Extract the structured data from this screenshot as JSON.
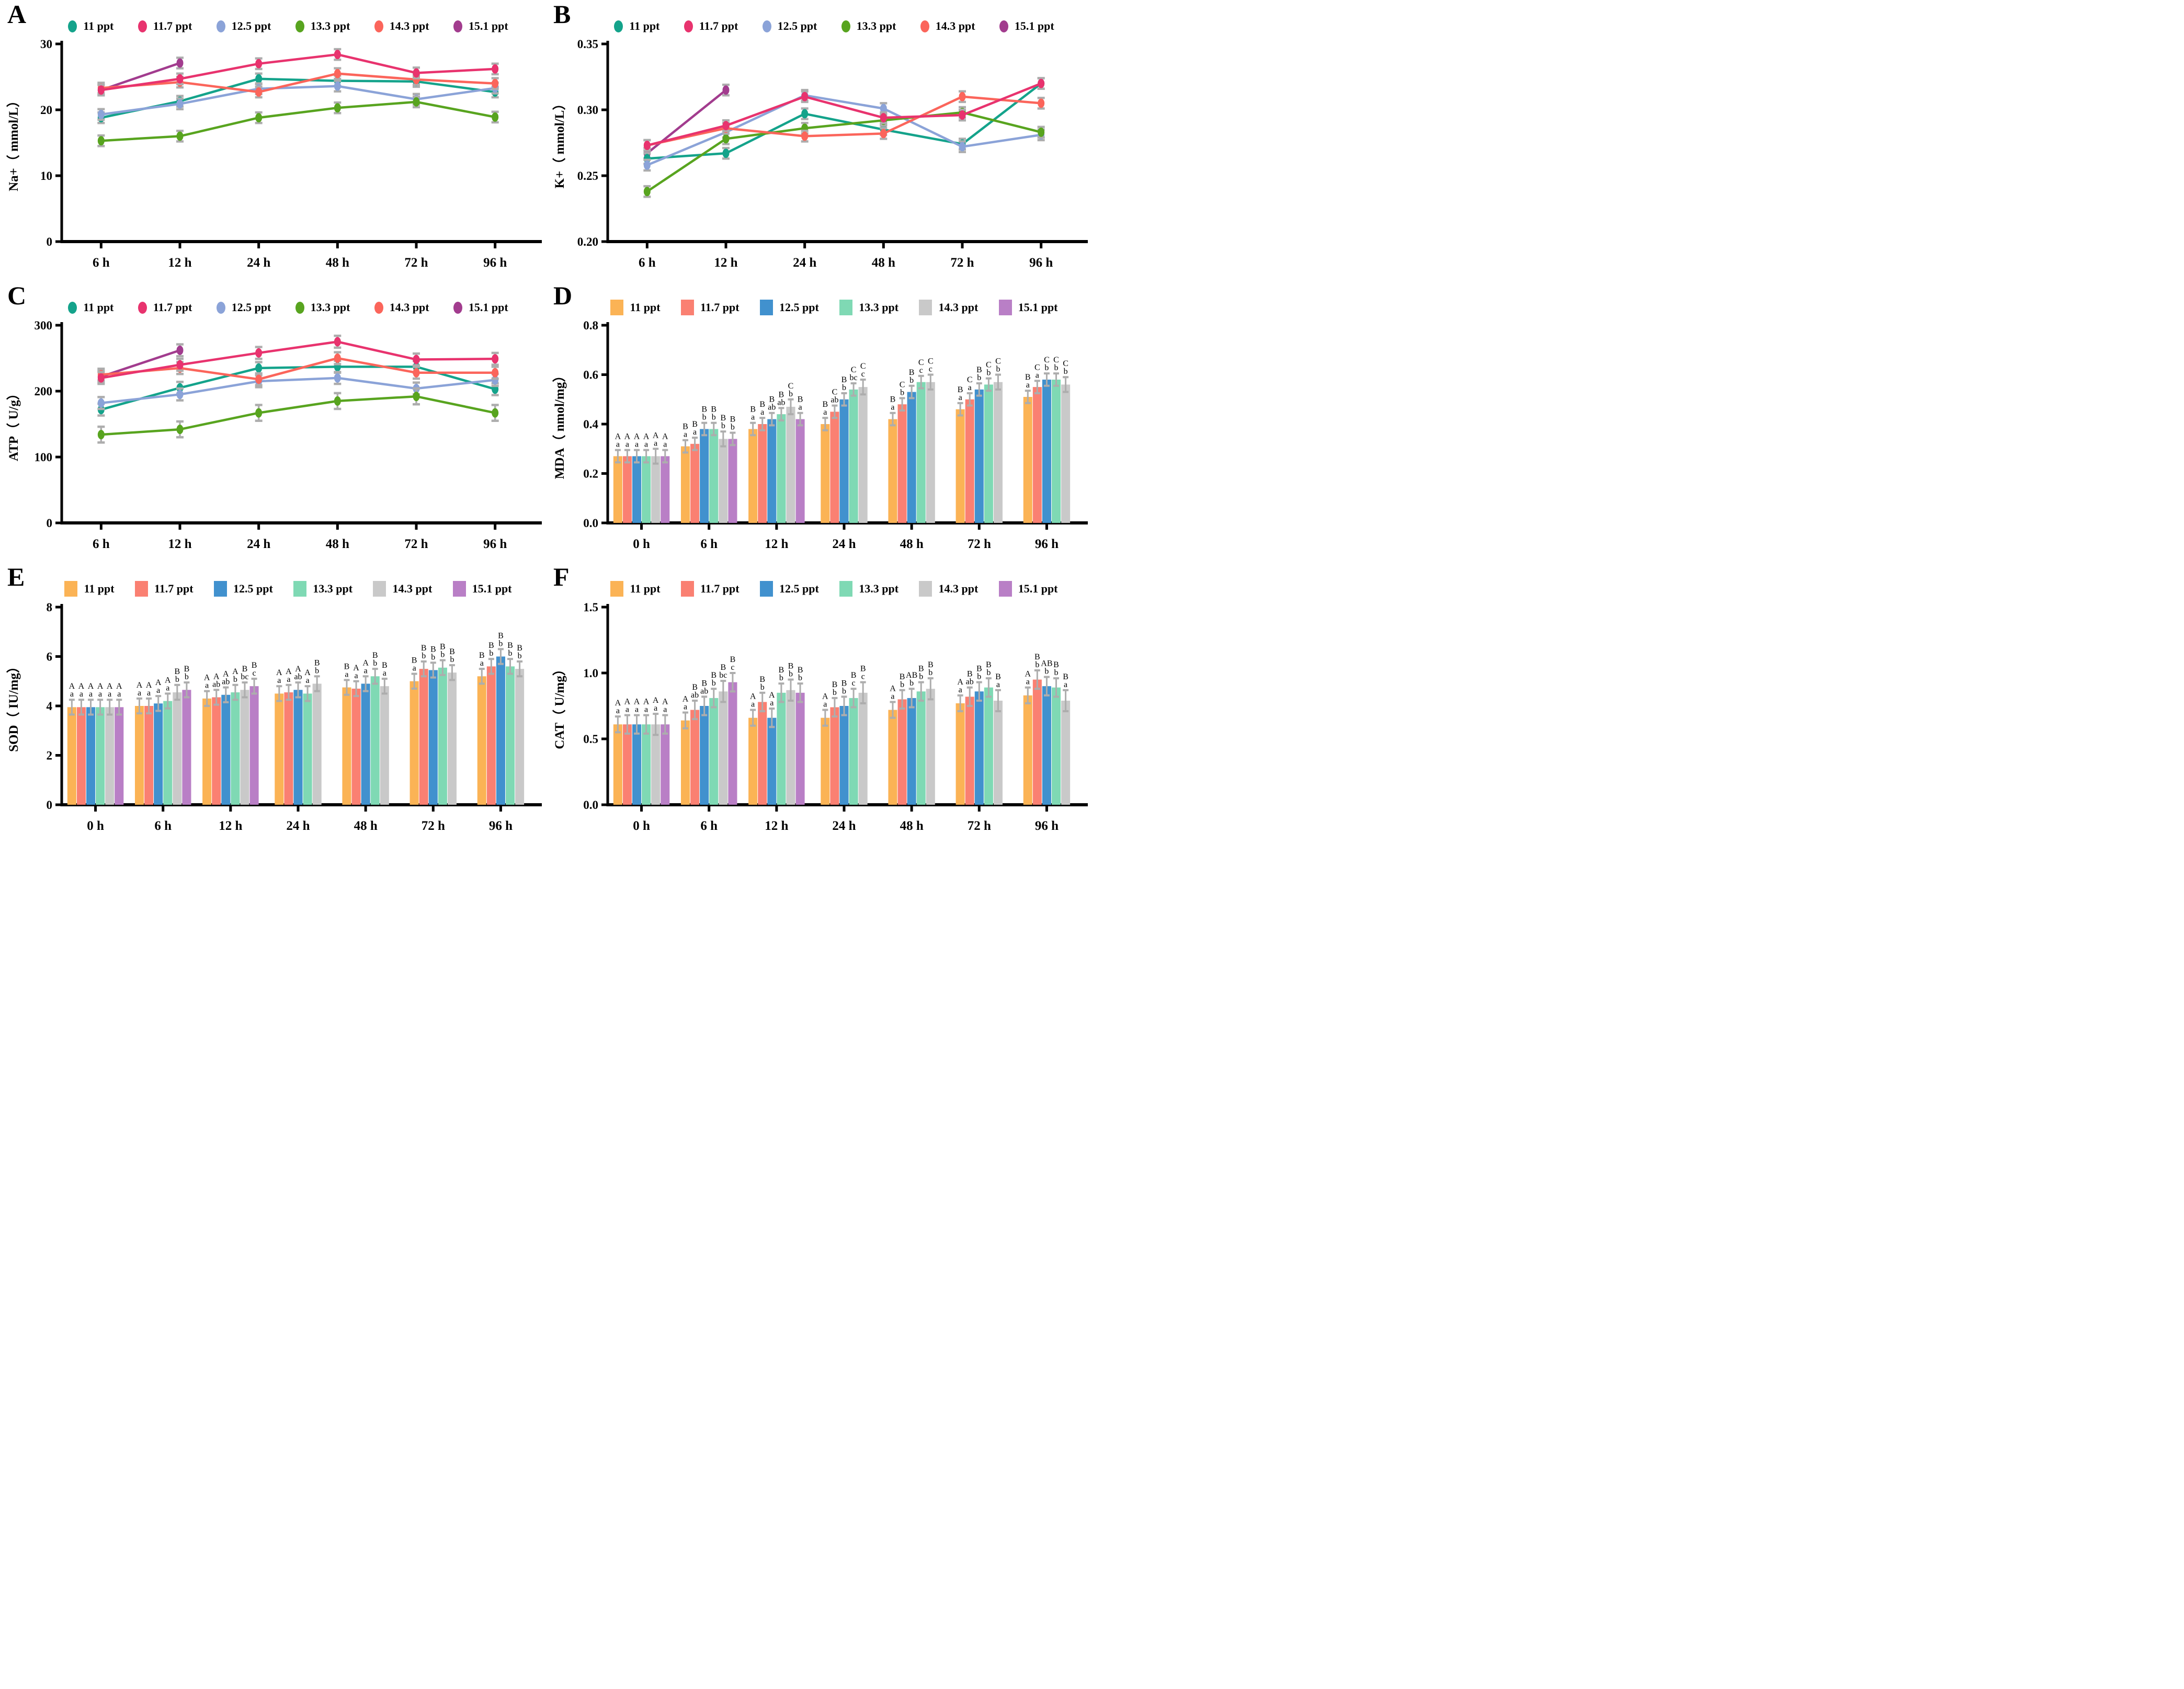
{
  "figure_note": "Six-panel physiology figure: line charts (A Na+, B K+, C ATP) and grouped bar charts (D MDA, E SOD, F CAT) across salinity groups and exposure times",
  "chart_data": [
    {
      "panel": "A",
      "type": "line",
      "ylabel": "Na+（ mmol/L）",
      "categories": [
        "6 h",
        "12 h",
        "24 h",
        "48 h",
        "72 h",
        "96 h"
      ],
      "ylim": [
        0,
        30
      ],
      "yticks": [
        0,
        10,
        20,
        30
      ],
      "ytick_labels": [
        "0",
        "10",
        "20",
        "30"
      ],
      "legend_position": "top",
      "grid": false,
      "series": [
        {
          "name": "11 ppt",
          "color": "#14A38B",
          "err": 0.8,
          "values": [
            18.8,
            21.3,
            24.7,
            24.4,
            24.3,
            22.7
          ]
        },
        {
          "name": "11.7 ppt",
          "color": "#E8336E",
          "err": 0.8,
          "values": [
            23.0,
            24.7,
            27.0,
            28.4,
            25.6,
            26.2
          ]
        },
        {
          "name": "12.5 ppt",
          "color": "#8BA3D8",
          "err": 0.8,
          "values": [
            19.3,
            20.9,
            23.2,
            23.6,
            21.6,
            23.3
          ]
        },
        {
          "name": "13.3 ppt",
          "color": "#58A41F",
          "err": 0.8,
          "values": [
            15.3,
            16.0,
            18.8,
            20.3,
            21.2,
            18.9
          ]
        },
        {
          "name": "14.3 ppt",
          "color": "#FB655B",
          "err": 0.8,
          "values": [
            23.3,
            24.2,
            22.7,
            25.5,
            24.6,
            24.0
          ]
        },
        {
          "name": "15.1 ppt",
          "color": "#A23C8E",
          "err": 0.8,
          "values": [
            23.0,
            27.1,
            null,
            null,
            null,
            null
          ]
        }
      ]
    },
    {
      "panel": "B",
      "type": "line",
      "ylabel": "K+（ mmol/L）",
      "categories": [
        "6 h",
        "12 h",
        "24 h",
        "48 h",
        "72 h",
        "96 h"
      ],
      "ylim": [
        0.2,
        0.35
      ],
      "yticks": [
        0.2,
        0.25,
        0.3,
        0.35
      ],
      "ytick_labels": [
        "0.20",
        "0.25",
        "0.30",
        "0.35"
      ],
      "legend_position": "top",
      "grid": false,
      "series": [
        {
          "name": "11 ppt",
          "color": "#14A38B",
          "err": 0.004,
          "values": [
            0.263,
            0.267,
            0.297,
            0.285,
            0.274,
            0.32
          ]
        },
        {
          "name": "11.7 ppt",
          "color": "#E8336E",
          "err": 0.004,
          "values": [
            0.273,
            0.288,
            0.31,
            0.294,
            0.296,
            0.32
          ]
        },
        {
          "name": "12.5 ppt",
          "color": "#8BA3D8",
          "err": 0.004,
          "values": [
            0.258,
            0.283,
            0.311,
            0.301,
            0.272,
            0.281
          ]
        },
        {
          "name": "13.3 ppt",
          "color": "#58A41F",
          "err": 0.004,
          "values": [
            0.238,
            0.278,
            0.286,
            0.292,
            0.298,
            0.283
          ]
        },
        {
          "name": "14.3 ppt",
          "color": "#FB655B",
          "err": 0.004,
          "values": [
            0.273,
            0.286,
            0.28,
            0.282,
            0.31,
            0.305
          ]
        },
        {
          "name": "15.1 ppt",
          "color": "#A23C8E",
          "err": 0.004,
          "values": [
            0.267,
            0.315,
            null,
            null,
            null,
            null
          ]
        }
      ]
    },
    {
      "panel": "C",
      "type": "line",
      "ylabel": "ATP（ U/g）",
      "categories": [
        "6 h",
        "12 h",
        "24 h",
        "48 h",
        "72 h",
        "96 h"
      ],
      "ylim": [
        0,
        300
      ],
      "yticks": [
        0,
        100,
        200,
        300
      ],
      "ytick_labels": [
        "0",
        "100",
        "200",
        "300"
      ],
      "legend_position": "top",
      "grid": false,
      "series": [
        {
          "name": "11 ppt",
          "color": "#14A38B",
          "err": 9,
          "values": [
            172,
            205,
            235,
            237,
            237,
            203
          ]
        },
        {
          "name": "11.7 ppt",
          "color": "#E8336E",
          "err": 9,
          "values": [
            220,
            240,
            258,
            275,
            248,
            249
          ]
        },
        {
          "name": "12.5 ppt",
          "color": "#8BA3D8",
          "err": 9,
          "values": [
            182,
            195,
            215,
            220,
            204,
            217
          ]
        },
        {
          "name": "13.3 ppt",
          "color": "#58A41F",
          "err": 12,
          "values": [
            134,
            142,
            167,
            185,
            192,
            167
          ]
        },
        {
          "name": "14.3 ppt",
          "color": "#FB655B",
          "err": 9,
          "values": [
            225,
            235,
            218,
            250,
            228,
            228
          ]
        },
        {
          "name": "15.1 ppt",
          "color": "#A23C8E",
          "err": 9,
          "values": [
            222,
            262,
            null,
            null,
            null,
            null
          ]
        }
      ]
    },
    {
      "panel": "D",
      "type": "bar",
      "ylabel": "MDA（ nmol/mg）",
      "categories": [
        "0 h",
        "6 h",
        "12 h",
        "24 h",
        "48 h",
        "72 h",
        "96 h"
      ],
      "ylim": [
        0,
        0.8
      ],
      "yticks": [
        0,
        0.2,
        0.4,
        0.6,
        0.8
      ],
      "ytick_labels": [
        "0.0",
        "0.2",
        "0.4",
        "0.6",
        "0.8"
      ],
      "legend_position": "top",
      "grid": false,
      "series": [
        {
          "name": "11 ppt",
          "color": "#FBB355",
          "err": 0.025,
          "values": [
            0.27,
            0.31,
            0.38,
            0.4,
            0.42,
            0.46,
            0.51
          ],
          "letters": [
            "A a",
            "B a",
            "B a",
            "B a",
            "B a",
            "B a",
            "B a"
          ]
        },
        {
          "name": "11.7 ppt",
          "color": "#FA8072",
          "err": 0.025,
          "values": [
            0.27,
            0.32,
            0.4,
            0.45,
            0.48,
            0.5,
            0.55
          ],
          "letters": [
            "A a",
            "B a",
            "B a",
            "C ab",
            "C b",
            "C a",
            "C a"
          ]
        },
        {
          "name": "12.5 ppt",
          "color": "#4191CE",
          "err": 0.025,
          "values": [
            0.27,
            0.38,
            0.42,
            0.5,
            0.53,
            0.54,
            0.58
          ],
          "letters": [
            "A a",
            "B b",
            "B ab",
            "B b",
            "B b",
            "B b",
            "C b"
          ]
        },
        {
          "name": "13.3 ppt",
          "color": "#7FD9B4",
          "err": 0.025,
          "values": [
            0.27,
            0.38,
            0.44,
            0.54,
            0.57,
            0.56,
            0.58
          ],
          "letters": [
            "A a",
            "B b",
            "B ab",
            "C bc",
            "C c",
            "C b",
            "C b"
          ]
        },
        {
          "name": "14.3 ppt",
          "color": "#C9C9C9",
          "err": 0.03,
          "values": [
            0.27,
            0.34,
            0.47,
            0.55,
            0.57,
            0.57,
            0.56
          ],
          "letters": [
            "A a",
            "B b",
            "C b",
            "C c",
            "C c",
            "C b",
            "C b"
          ]
        },
        {
          "name": "15.1 ppt",
          "color": "#B97FC6",
          "err": 0.025,
          "values": [
            0.27,
            0.34,
            0.42,
            null,
            null,
            null,
            null
          ],
          "letters": [
            "A a",
            "B b",
            "B a",
            null,
            null,
            null,
            null
          ]
        }
      ]
    },
    {
      "panel": "E",
      "type": "bar",
      "ylabel": "SOD（ IU/mg）",
      "categories": [
        "0 h",
        "6 h",
        "12 h",
        "24 h",
        "48 h",
        "72 h",
        "96 h"
      ],
      "ylim": [
        0,
        8
      ],
      "yticks": [
        0,
        2,
        4,
        6,
        8
      ],
      "ytick_labels": [
        "0",
        "2",
        "4",
        "6",
        "8"
      ],
      "legend_position": "top",
      "grid": false,
      "series": [
        {
          "name": "11 ppt",
          "color": "#FBB355",
          "err": 0.3,
          "values": [
            3.95,
            4.0,
            4.3,
            4.5,
            4.75,
            5.0,
            5.2
          ],
          "letters": [
            "A a",
            "A a",
            "A a",
            "A a",
            "B a",
            "B a",
            "B a"
          ]
        },
        {
          "name": "11.7 ppt",
          "color": "#FA8072",
          "err": 0.3,
          "values": [
            3.95,
            4.0,
            4.35,
            4.55,
            4.7,
            5.5,
            5.6
          ],
          "letters": [
            "A a",
            "A a",
            "A ab",
            "A a",
            "A a",
            "B b",
            "B b"
          ]
        },
        {
          "name": "12.5 ppt",
          "color": "#4191CE",
          "err": 0.3,
          "values": [
            3.95,
            4.1,
            4.45,
            4.65,
            4.9,
            5.45,
            6.0
          ],
          "letters": [
            "A a",
            "A a",
            "A ab",
            "A ab",
            "A a",
            "B b",
            "B b"
          ]
        },
        {
          "name": "13.3 ppt",
          "color": "#7FD9B4",
          "err": 0.3,
          "values": [
            3.95,
            4.2,
            4.55,
            4.5,
            5.2,
            5.55,
            5.6
          ],
          "letters": [
            "A a",
            "A a",
            "A b",
            "A a",
            "B b",
            "B b",
            "B b"
          ]
        },
        {
          "name": "14.3 ppt",
          "color": "#C9C9C9",
          "err": 0.3,
          "values": [
            3.95,
            4.55,
            4.65,
            4.9,
            4.8,
            5.35,
            5.5
          ],
          "letters": [
            "A a",
            "B b",
            "B bc",
            "B b",
            "B a",
            "B b",
            "B b"
          ]
        },
        {
          "name": "15.1 ppt",
          "color": "#B97FC6",
          "err": 0.3,
          "values": [
            3.95,
            4.65,
            4.8,
            null,
            null,
            null,
            null
          ],
          "letters": [
            "A a",
            "B b",
            "B c",
            null,
            null,
            null,
            null
          ]
        }
      ]
    },
    {
      "panel": "F",
      "type": "bar",
      "ylabel": "CAT（ U/mg）",
      "categories": [
        "0 h",
        "6 h",
        "12 h",
        "24 h",
        "48 h",
        "72 h",
        "96 h"
      ],
      "ylim": [
        0,
        1.5
      ],
      "yticks": [
        0,
        0.5,
        1.0,
        1.5
      ],
      "ytick_labels": [
        "0.0",
        "0.5",
        "1.0",
        "1.5"
      ],
      "legend_position": "top",
      "grid": false,
      "series": [
        {
          "name": "11 ppt",
          "color": "#FBB355",
          "err": 0.06,
          "values": [
            0.61,
            0.64,
            0.66,
            0.66,
            0.72,
            0.77,
            0.83
          ],
          "letters": [
            "A a",
            "A a",
            "A a",
            "A a",
            "A a",
            "A a",
            "A a"
          ]
        },
        {
          "name": "11.7 ppt",
          "color": "#FA8072",
          "err": 0.07,
          "values": [
            0.61,
            0.72,
            0.78,
            0.74,
            0.8,
            0.82,
            0.95
          ],
          "letters": [
            "A a",
            "B ab",
            "B b",
            "B b",
            "B b",
            "B ab",
            "B b"
          ]
        },
        {
          "name": "12.5 ppt",
          "color": "#4191CE",
          "err": 0.07,
          "values": [
            0.61,
            0.75,
            0.66,
            0.75,
            0.81,
            0.86,
            0.9
          ],
          "letters": [
            "A a",
            "B ab",
            "A a",
            "B b",
            "AB b",
            "B b",
            "AB b"
          ]
        },
        {
          "name": "13.3 ppt",
          "color": "#7FD9B4",
          "err": 0.07,
          "values": [
            0.61,
            0.81,
            0.85,
            0.81,
            0.86,
            0.89,
            0.89
          ],
          "letters": [
            "A a",
            "B b",
            "B b",
            "B c",
            "B b",
            "B b",
            "B b"
          ]
        },
        {
          "name": "14.3 ppt",
          "color": "#C9C9C9",
          "err": 0.08,
          "values": [
            0.61,
            0.86,
            0.87,
            0.85,
            0.88,
            0.79,
            0.79
          ],
          "letters": [
            "A a",
            "B bc",
            "B b",
            "B c",
            "B b",
            "B a",
            "B a"
          ]
        },
        {
          "name": "15.1 ppt",
          "color": "#B97FC6",
          "err": 0.07,
          "values": [
            0.61,
            0.93,
            0.85,
            null,
            null,
            null,
            null
          ],
          "letters": [
            "A a",
            "B c",
            "B b",
            null,
            null,
            null,
            null
          ]
        }
      ]
    }
  ]
}
